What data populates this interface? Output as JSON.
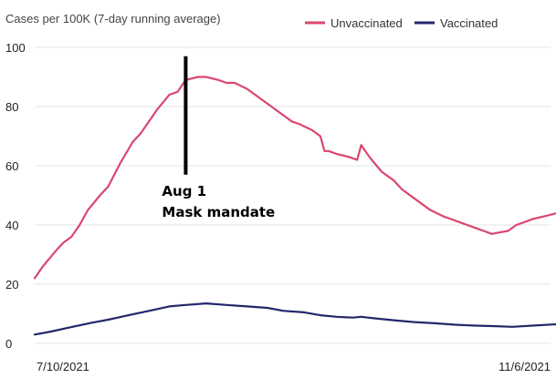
{
  "chart_data": {
    "type": "line",
    "title": "",
    "ylabel": "Cases per 100K (7-day running average)",
    "xlabel": "",
    "x_start": "2021-07-10",
    "x_end": "2021-11-06",
    "x_tick_labels": [
      "7/10/2021",
      "11/6/2021"
    ],
    "ylim": [
      0,
      100
    ],
    "y_ticks": [
      0,
      20,
      40,
      60,
      80,
      100
    ],
    "grid": "horizontal",
    "legend_position": "top-right",
    "series": [
      {
        "name": "Unvaccinated",
        "color": "#d9486e",
        "points": [
          [
            "2021-07-10",
            22
          ],
          [
            "2021-07-12",
            26
          ],
          [
            "2021-07-15",
            31
          ],
          [
            "2021-07-17",
            34
          ],
          [
            "2021-07-19",
            36
          ],
          [
            "2021-07-21",
            40
          ],
          [
            "2021-07-23",
            45
          ],
          [
            "2021-07-26",
            50
          ],
          [
            "2021-07-28",
            53
          ],
          [
            "2021-07-31",
            61
          ],
          [
            "2021-08-03",
            68
          ],
          [
            "2021-08-05",
            71
          ],
          [
            "2021-08-07",
            75
          ],
          [
            "2021-08-09",
            79
          ],
          [
            "2021-08-12",
            84
          ],
          [
            "2021-08-14",
            85
          ],
          [
            "2021-08-16",
            89
          ],
          [
            "2021-08-19",
            90
          ],
          [
            "2021-08-21",
            90
          ],
          [
            "2021-08-24",
            89
          ],
          [
            "2021-08-26",
            88
          ],
          [
            "2021-08-28",
            88
          ],
          [
            "2021-08-31",
            86
          ],
          [
            "2021-09-02",
            84
          ],
          [
            "2021-09-04",
            82
          ],
          [
            "2021-09-06",
            80
          ],
          [
            "2021-09-08",
            78
          ],
          [
            "2021-09-11",
            75
          ],
          [
            "2021-09-13",
            74
          ],
          [
            "2021-09-16",
            72
          ],
          [
            "2021-09-18",
            70
          ],
          [
            "2021-09-19",
            65
          ],
          [
            "2021-09-20",
            65
          ],
          [
            "2021-09-22",
            64
          ],
          [
            "2021-09-25",
            63
          ],
          [
            "2021-09-27",
            62
          ],
          [
            "2021-09-28",
            67
          ],
          [
            "2021-09-30",
            63
          ],
          [
            "2021-10-03",
            58
          ],
          [
            "2021-10-06",
            55
          ],
          [
            "2021-10-08",
            52
          ],
          [
            "2021-10-11",
            49
          ],
          [
            "2021-10-13",
            47
          ],
          [
            "2021-10-15",
            45
          ],
          [
            "2021-10-18",
            43
          ],
          [
            "2021-10-20",
            42
          ],
          [
            "2021-10-22",
            41
          ],
          [
            "2021-10-24",
            40
          ],
          [
            "2021-10-26",
            39
          ],
          [
            "2021-10-28",
            38
          ],
          [
            "2021-10-30",
            37
          ],
          [
            "2021-11-01",
            37.5
          ],
          [
            "2021-11-03",
            38
          ],
          [
            "2021-11-05",
            40
          ],
          [
            "2021-11-07",
            41
          ],
          [
            "2021-11-09",
            42
          ],
          [
            "2021-11-12",
            43
          ],
          [
            "2021-11-15",
            44
          ],
          [
            "2021-11-17",
            43.5
          ],
          [
            "2021-11-19",
            43
          ],
          [
            "2021-11-22",
            42.5
          ],
          [
            "2021-11-24",
            41.5
          ],
          [
            "2021-11-27",
            40.5
          ]
        ]
      },
      {
        "name": "Vaccinated",
        "color": "#23276b",
        "points": [
          [
            "2021-07-10",
            3
          ],
          [
            "2021-07-14",
            4
          ],
          [
            "2021-07-19",
            5.5
          ],
          [
            "2021-07-24",
            7
          ],
          [
            "2021-07-28",
            8
          ],
          [
            "2021-08-02",
            9.5
          ],
          [
            "2021-08-07",
            11
          ],
          [
            "2021-08-12",
            12.5
          ],
          [
            "2021-08-16",
            13
          ],
          [
            "2021-08-21",
            13.5
          ],
          [
            "2021-08-26",
            13
          ],
          [
            "2021-08-31",
            12.5
          ],
          [
            "2021-09-05",
            12
          ],
          [
            "2021-09-09",
            11
          ],
          [
            "2021-09-14",
            10.5
          ],
          [
            "2021-09-18",
            9.5
          ],
          [
            "2021-09-22",
            9
          ],
          [
            "2021-09-26",
            8.7
          ],
          [
            "2021-09-28",
            9
          ],
          [
            "2021-10-01",
            8.5
          ],
          [
            "2021-10-06",
            7.8
          ],
          [
            "2021-10-11",
            7.2
          ],
          [
            "2021-10-16",
            6.8
          ],
          [
            "2021-10-21",
            6.3
          ],
          [
            "2021-10-26",
            6
          ],
          [
            "2021-10-31",
            5.8
          ],
          [
            "2021-11-04",
            5.6
          ],
          [
            "2021-11-09",
            6
          ],
          [
            "2021-11-14",
            6.4
          ],
          [
            "2021-11-18",
            6.5
          ],
          [
            "2021-11-23",
            6.2
          ],
          [
            "2021-11-27",
            5.8
          ]
        ]
      }
    ],
    "annotations": [
      {
        "date": "2021-08-16",
        "y_top": 97,
        "y_bottom": 57,
        "line1": "Aug 1",
        "line2": "Mask mandate"
      }
    ]
  }
}
